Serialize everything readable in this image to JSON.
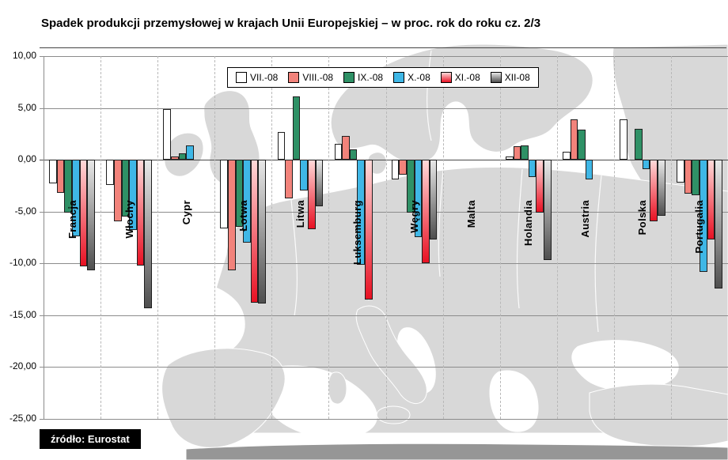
{
  "header": {
    "title": "Spadek produkcji przemysłowej w krajach Unii Europejskiej – w proc. rok do roku cz. 2/3"
  },
  "source": {
    "label": "źródło: Eurostat"
  },
  "chart_data": {
    "type": "bar",
    "title": "Spadek produkcji przemysłowej w krajach Unii Europejskiej – w proc. rok do roku cz. 2/3",
    "xlabel": "",
    "ylabel": "",
    "unit": "%",
    "ylim": [
      -25,
      10
    ],
    "grid": true,
    "legend_position": "top-center",
    "background": "europe-map",
    "yticks": [
      {
        "value": 10,
        "label": "10,00"
      },
      {
        "value": 5,
        "label": "5,00"
      },
      {
        "value": 0,
        "label": "0,00"
      },
      {
        "value": -5,
        "label": "-5,00"
      },
      {
        "value": -10,
        "label": "-10,00"
      },
      {
        "value": -15,
        "label": "-15,00"
      },
      {
        "value": -20,
        "label": "-20,00"
      },
      {
        "value": -25,
        "label": "-25,00"
      }
    ],
    "categories": [
      "Francja",
      "Włochy",
      "Cypr",
      "Łotwa",
      "Litwa",
      "Luksemburg",
      "Węgry",
      "Malta",
      "Holandia",
      "Austria",
      "Polska",
      "Portugalia"
    ],
    "series": [
      {
        "name": "VII.-08",
        "fill": "#ffffff",
        "values": [
          -2.3,
          -2.4,
          4.9,
          -6.6,
          2.7,
          1.5,
          -1.9,
          null,
          0.3,
          0.8,
          3.9,
          -2.2
        ]
      },
      {
        "name": "VIII.-08",
        "fill": "#f2837b",
        "values": [
          -3.2,
          -5.9,
          0.3,
          -10.7,
          -3.7,
          2.3,
          -1.4,
          null,
          1.3,
          3.9,
          null,
          -3.3
        ]
      },
      {
        "name": "IX.-08",
        "fill": "#2f9166",
        "values": [
          -5.1,
          -5.5,
          0.6,
          -6.5,
          6.1,
          1.0,
          -5.1,
          null,
          1.4,
          2.9,
          3.0,
          -3.4
        ]
      },
      {
        "name": "X.-08",
        "fill": "#3fb7e6",
        "values": [
          -7.4,
          -6.8,
          1.4,
          -8.0,
          -3.0,
          -10.1,
          -7.5,
          null,
          -1.7,
          -1.9,
          -0.9,
          -10.8
        ]
      },
      {
        "name": "XI.-08",
        "gradient": [
          "#ffd9d9",
          "#e81123"
        ],
        "values": [
          -10.3,
          -10.2,
          null,
          -13.8,
          -6.7,
          -13.5,
          -10.0,
          null,
          -5.1,
          null,
          -5.9,
          -7.7
        ]
      },
      {
        "name": "XII-08",
        "gradient": [
          "#e8e8e8",
          "#4f4f4f"
        ],
        "values": [
          -10.7,
          -14.3,
          null,
          -13.9,
          -4.5,
          null,
          -7.7,
          null,
          -9.7,
          null,
          -5.4,
          -12.4
        ]
      }
    ]
  }
}
